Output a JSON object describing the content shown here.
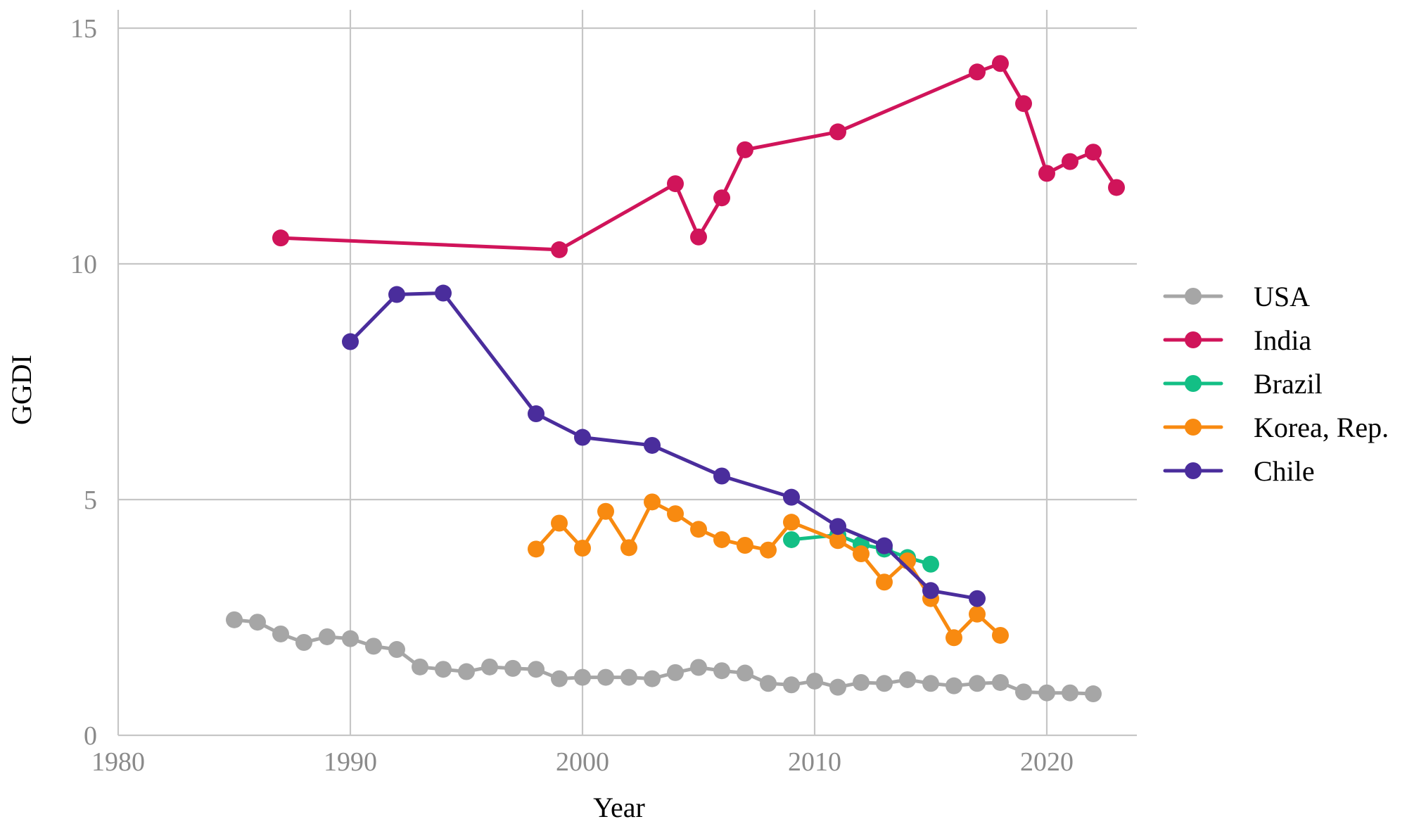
{
  "chart_data": {
    "type": "line",
    "title": "",
    "xlabel": "Year",
    "ylabel": "GGDI",
    "xlim": [
      1980,
      2024
    ],
    "ylim": [
      0,
      15
    ],
    "xticks": [
      1980,
      1990,
      2000,
      2010,
      2020
    ],
    "yticks": [
      0,
      5,
      10,
      15
    ],
    "grid": true,
    "legend_position": "right",
    "series": [
      {
        "name": "USA",
        "color": "#a6a6a6",
        "x": [
          1985,
          1986,
          1987,
          1988,
          1989,
          1990,
          1991,
          1992,
          1993,
          1994,
          1995,
          1996,
          1997,
          1998,
          1999,
          2000,
          2001,
          2002,
          2003,
          2004,
          2005,
          2006,
          2007,
          2008,
          2009,
          2010,
          2011,
          2012,
          2013,
          2014,
          2015,
          2016,
          2017,
          2018,
          2019,
          2020,
          2021,
          2022
        ],
        "y": [
          2.45,
          2.4,
          2.15,
          1.97,
          2.09,
          2.05,
          1.89,
          1.82,
          1.45,
          1.4,
          1.35,
          1.45,
          1.42,
          1.4,
          1.2,
          1.23,
          1.23,
          1.23,
          1.2,
          1.33,
          1.44,
          1.37,
          1.32,
          1.1,
          1.07,
          1.15,
          1.02,
          1.12,
          1.1,
          1.18,
          1.1,
          1.05,
          1.1,
          1.12,
          0.92,
          0.9,
          0.9,
          0.88
        ]
      },
      {
        "name": "India",
        "color": "#d0145a",
        "x": [
          1987,
          1999,
          2004,
          2005,
          2006,
          2007,
          2011,
          2017,
          2018,
          2019,
          2020,
          2021,
          2022,
          2023
        ],
        "y": [
          10.55,
          10.3,
          11.7,
          10.57,
          11.4,
          12.42,
          12.8,
          14.07,
          14.25,
          13.4,
          11.92,
          12.17,
          12.37,
          11.62
        ]
      },
      {
        "name": "Brazil",
        "color": "#13bf85",
        "x": [
          2009,
          2011,
          2012,
          2013,
          2014,
          2015
        ],
        "y": [
          4.15,
          4.25,
          4.05,
          3.95,
          3.77,
          3.63
        ]
      },
      {
        "name": "Korea, Rep.",
        "color": "#f88a10",
        "x": [
          1998,
          1999,
          2000,
          2001,
          2002,
          2003,
          2004,
          2005,
          2006,
          2007,
          2008,
          2009,
          2011,
          2012,
          2013,
          2014,
          2015,
          2016,
          2017,
          2018
        ],
        "y": [
          3.95,
          4.5,
          3.97,
          4.75,
          3.98,
          4.95,
          4.7,
          4.37,
          4.15,
          4.03,
          3.93,
          4.52,
          4.13,
          3.85,
          3.25,
          3.7,
          2.9,
          2.07,
          2.57,
          2.12
        ]
      },
      {
        "name": "Chile",
        "color": "#4a2d9c",
        "x": [
          1990,
          1992,
          1994,
          1998,
          2000,
          2003,
          2006,
          2009,
          2011,
          2013,
          2015,
          2017
        ],
        "y": [
          8.35,
          9.35,
          9.38,
          6.82,
          6.32,
          6.15,
          5.5,
          5.05,
          4.43,
          4.02,
          3.07,
          2.9
        ]
      }
    ]
  }
}
